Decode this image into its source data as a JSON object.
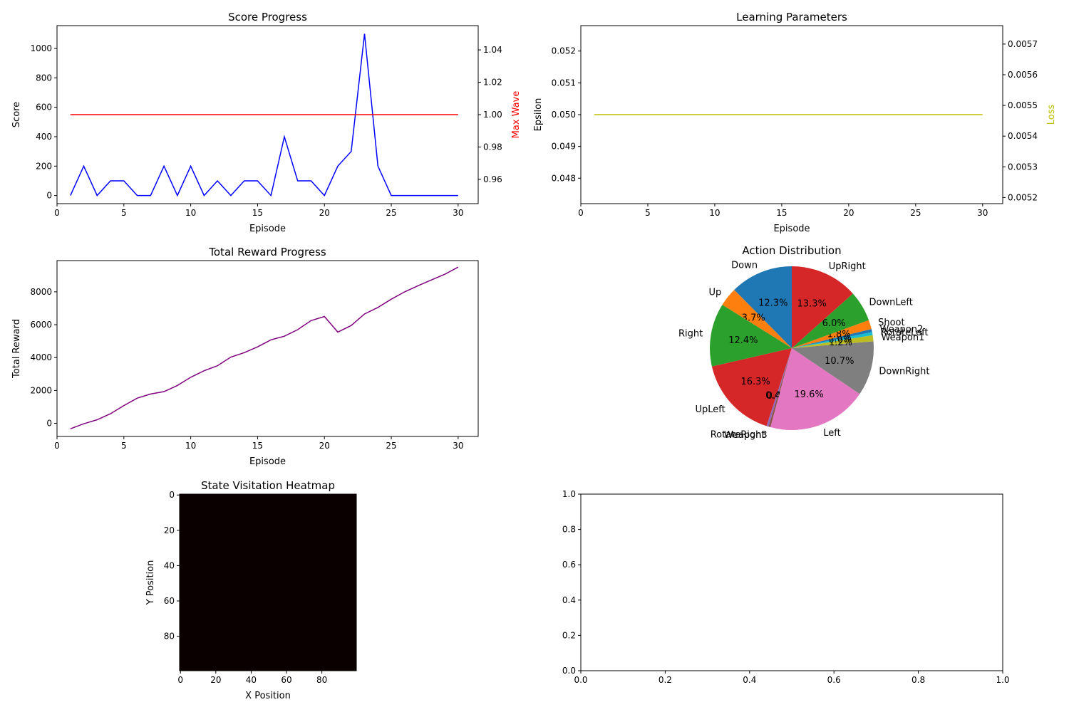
{
  "chart_data": [
    {
      "id": "score",
      "type": "line",
      "title": "Score Progress",
      "xlabel": "Episode",
      "ylabel": "Score",
      "y2label": "Max Wave",
      "xlim": [
        0,
        31.5
      ],
      "ylim": [
        -55,
        1155
      ],
      "y2lim": [
        0.945,
        1.055
      ],
      "xticks": [
        0,
        5,
        10,
        15,
        20,
        25,
        30
      ],
      "yticks": [
        0,
        200,
        400,
        600,
        800,
        1000
      ],
      "y2ticks": [
        0.96,
        0.98,
        1.0,
        1.02,
        1.04
      ],
      "y2ticklabels": [
        "0.96",
        "0.98",
        "1.00",
        "1.02",
        "1.04"
      ],
      "series": [
        {
          "name": "",
          "axis": "left",
          "color": "#0000ff",
          "x": [
            1,
            2,
            3,
            4,
            5,
            6,
            7,
            8,
            9,
            10,
            11,
            12,
            13,
            14,
            15,
            16,
            17,
            18,
            19,
            20,
            21,
            22,
            23,
            24,
            25,
            26,
            27,
            28,
            29,
            30
          ],
          "y": [
            0,
            200,
            0,
            100,
            100,
            0,
            0,
            200,
            0,
            200,
            0,
            100,
            0,
            100,
            100,
            0,
            400,
            100,
            100,
            0,
            200,
            300,
            1100,
            200,
            0,
            0,
            0,
            0,
            0,
            0
          ]
        },
        {
          "name": "",
          "axis": "right",
          "color": "#ff0000",
          "x": [
            1,
            30
          ],
          "y": [
            1.0,
            1.0
          ]
        }
      ]
    },
    {
      "id": "params",
      "type": "line",
      "title": "Learning Parameters",
      "xlabel": "Episode",
      "ylabel": "Epsilon",
      "y2label": "Loss",
      "xlim": [
        0,
        31.5
      ],
      "ylim": [
        0.0472,
        0.0528
      ],
      "y2lim": [
        0.00518,
        0.00576
      ],
      "xticks": [
        0,
        5,
        10,
        15,
        20,
        25,
        30
      ],
      "yticks": [
        0.048,
        0.049,
        0.05,
        0.051,
        0.052
      ],
      "yticklabels": [
        "0.048",
        "0.049",
        "0.050",
        "0.051",
        "0.052"
      ],
      "y2ticks": [
        0.0052,
        0.0053,
        0.0054,
        0.0055,
        0.0056,
        0.0057
      ],
      "y2ticklabels": [
        "0.0052",
        "0.0053",
        "0.0054",
        "0.0055",
        "0.0056",
        "0.0057"
      ],
      "series": [
        {
          "name": "",
          "axis": "right",
          "color": "#bfbf00",
          "x": [
            1,
            30
          ],
          "y": [
            0.00547,
            0.00547
          ]
        }
      ]
    },
    {
      "id": "reward",
      "type": "line",
      "title": "Total Reward Progress",
      "xlabel": "Episode",
      "ylabel": "Total Reward",
      "xlim": [
        0,
        31.5
      ],
      "ylim": [
        -800,
        9900
      ],
      "xticks": [
        0,
        5,
        10,
        15,
        20,
        25,
        30
      ],
      "yticks": [
        0,
        2000,
        4000,
        6000,
        8000
      ],
      "series": [
        {
          "name": "",
          "axis": "left",
          "color": "#800080",
          "x": [
            1,
            2,
            3,
            4,
            5,
            6,
            7,
            8,
            9,
            10,
            11,
            12,
            13,
            14,
            15,
            16,
            17,
            18,
            19,
            20,
            21,
            22,
            23,
            24,
            25,
            26,
            27,
            28,
            29,
            30
          ],
          "y": [
            -330,
            -30,
            220,
            580,
            1080,
            1530,
            1780,
            1930,
            2300,
            2800,
            3200,
            3500,
            4030,
            4300,
            4650,
            5080,
            5300,
            5700,
            6250,
            6500,
            5550,
            5950,
            6650,
            7050,
            7550,
            8000,
            8370,
            8720,
            9070,
            9500
          ]
        }
      ]
    },
    {
      "id": "actions",
      "type": "pie",
      "title": "Action Distribution",
      "slices": [
        {
          "label": "Down",
          "value": 12.3,
          "pct": "12.3%",
          "color": "#1f77b4"
        },
        {
          "label": "Up",
          "value": 3.7,
          "pct": "3.7%",
          "color": "#ff7f0e"
        },
        {
          "label": "Right",
          "value": 12.4,
          "pct": "12.4%",
          "color": "#2ca02c"
        },
        {
          "label": "UpLeft",
          "value": 16.3,
          "pct": "16.3%",
          "color": "#d62728"
        },
        {
          "label": "RotateRight",
          "value": 0.4,
          "pct": "0.4%",
          "color": "#9467bd"
        },
        {
          "label": "Weapon3",
          "value": 0.4,
          "pct": "0.4%",
          "color": "#8c564b"
        },
        {
          "label": "Left",
          "value": 19.6,
          "pct": "19.6%",
          "color": "#e377c2"
        },
        {
          "label": "DownRight",
          "value": 10.7,
          "pct": "10.7%",
          "color": "#7f7f7f"
        },
        {
          "label": "Weapon1",
          "value": 1.2,
          "pct": "1.2%",
          "color": "#bcbd22"
        },
        {
          "label": "RotateLeft",
          "value": 0.6,
          "pct": "0.6%",
          "color": "#17becf"
        },
        {
          "label": "Weapon2",
          "value": 0.6,
          "pct": "0.6%",
          "color": "#1f77b4"
        },
        {
          "label": "Shoot",
          "value": 1.8,
          "pct": "1.8%",
          "color": "#ff7f0e"
        },
        {
          "label": "DownLeft",
          "value": 6.0,
          "pct": "6.0%",
          "color": "#2ca02c"
        },
        {
          "label": "UpRight",
          "value": 13.3,
          "pct": "13.3%",
          "color": "#d62728"
        }
      ]
    },
    {
      "id": "heatmap",
      "type": "heatmap",
      "title": "State Visitation Heatmap",
      "xlabel": "X Position",
      "ylabel": "Y Position",
      "xlim": [
        -0.5,
        99.5
      ],
      "ylim": [
        99.5,
        -0.5
      ],
      "xticks": [
        0,
        20,
        40,
        60,
        80
      ],
      "yticks": [
        0,
        20,
        40,
        60,
        80
      ],
      "fill_color": "#0b0000"
    },
    {
      "id": "empty",
      "type": "line",
      "title": "",
      "xlabel": "",
      "ylabel": "",
      "xlim": [
        0,
        1
      ],
      "ylim": [
        0,
        1
      ],
      "xticks": [
        0,
        0.2,
        0.4,
        0.6,
        0.8,
        1.0
      ],
      "yticks": [
        0,
        0.2,
        0.4,
        0.6,
        0.8,
        1.0
      ],
      "xticklabels": [
        "0.0",
        "0.2",
        "0.4",
        "0.6",
        "0.8",
        "1.0"
      ],
      "yticklabels": [
        "0.0",
        "0.2",
        "0.4",
        "0.6",
        "0.8",
        "1.0"
      ],
      "series": []
    }
  ]
}
